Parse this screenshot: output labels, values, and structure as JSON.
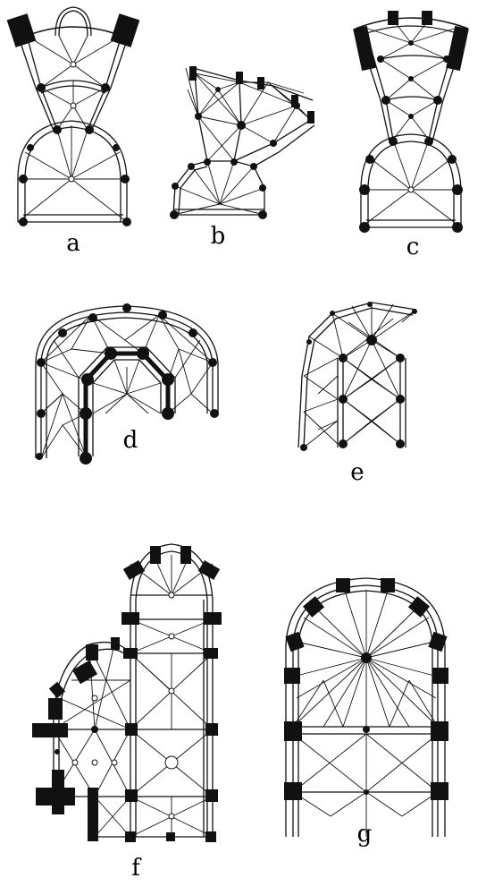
{
  "figure": {
    "plans": [
      {
        "id": "a",
        "label": "a"
      },
      {
        "id": "b",
        "label": "b"
      },
      {
        "id": "c",
        "label": "c"
      },
      {
        "id": "d",
        "label": "d"
      },
      {
        "id": "e",
        "label": "e"
      },
      {
        "id": "f",
        "label": "f"
      },
      {
        "id": "g",
        "label": "g"
      }
    ]
  }
}
